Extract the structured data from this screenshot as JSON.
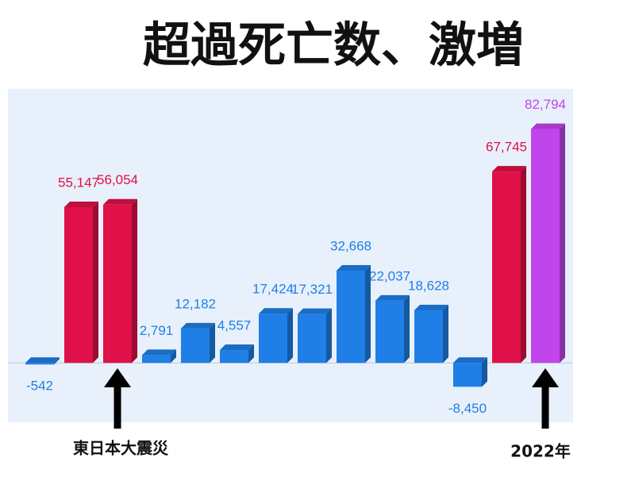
{
  "chart_data": {
    "type": "bar",
    "title": "超過死亡数、激増",
    "categories": [
      null,
      null,
      null,
      null,
      null,
      null,
      null,
      null,
      null,
      null,
      null,
      null,
      null,
      null
    ],
    "values": [
      -542,
      55147,
      56054,
      2791,
      12182,
      4557,
      17424,
      17321,
      32668,
      22037,
      18628,
      -8450,
      67745,
      82794
    ],
    "value_labels": [
      "-542",
      "55,147",
      "56,054",
      "2,791",
      "12,182",
      "4,557",
      "17,424",
      "17,321",
      "32,668",
      "22,037",
      "18,628",
      "-8,450",
      "67,745",
      "82,794"
    ],
    "colors": [
      "#1f7fe6",
      "#e01048",
      "#e01048",
      "#1f7fe6",
      "#1f7fe6",
      "#1f7fe6",
      "#1f7fe6",
      "#1f7fe6",
      "#1f7fe6",
      "#1f7fe6",
      "#1f7fe6",
      "#1f7fe6",
      "#e01048",
      "#c244ec"
    ],
    "ylim": [
      -21000,
      97000
    ],
    "annotations": [
      {
        "text": "東日本大震災",
        "index": 2
      },
      {
        "text": "2022年",
        "index": 13
      }
    ]
  }
}
